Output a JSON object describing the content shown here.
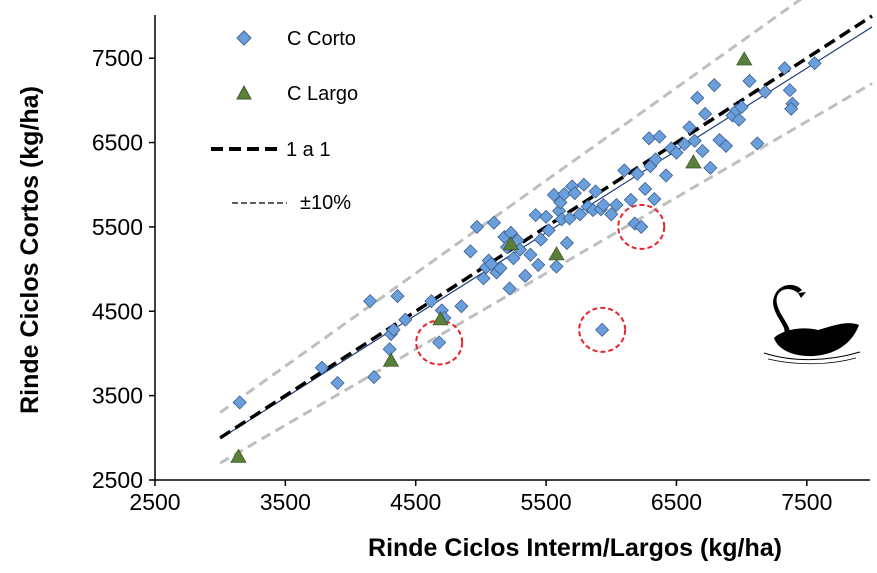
{
  "chart_data": {
    "type": "scatter",
    "title": "",
    "xlabel": "Rinde Ciclos Interm/Largos (kg/ha)",
    "ylabel": "Rinde Ciclos Cortos (kg/ha)",
    "xlim": [
      2500,
      8000
    ],
    "ylim": [
      2500,
      8000
    ],
    "xticks": [
      2500,
      3500,
      4500,
      5500,
      6500,
      7500
    ],
    "yticks": [
      2500,
      3500,
      4500,
      5500,
      6500,
      7500
    ],
    "grid": false,
    "legend_position": "top-left",
    "series": [
      {
        "name": "C Corto",
        "marker": "diamond",
        "color": "#6a9fdc",
        "points": [
          [
            3150,
            3420
          ],
          [
            3780,
            3830
          ],
          [
            3900,
            3650
          ],
          [
            4180,
            3720
          ],
          [
            4150,
            4620
          ],
          [
            4300,
            4050
          ],
          [
            4310,
            4230
          ],
          [
            4330,
            4280
          ],
          [
            4360,
            4680
          ],
          [
            4420,
            4400
          ],
          [
            4620,
            4620
          ],
          [
            4680,
            4130
          ],
          [
            4700,
            4510
          ],
          [
            4720,
            4420
          ],
          [
            4850,
            4560
          ],
          [
            4920,
            5210
          ],
          [
            4970,
            5500
          ],
          [
            5020,
            4890
          ],
          [
            5040,
            5020
          ],
          [
            5060,
            5100
          ],
          [
            5080,
            5060
          ],
          [
            5100,
            5550
          ],
          [
            5120,
            4960
          ],
          [
            5150,
            5010
          ],
          [
            5180,
            5380
          ],
          [
            5200,
            5260
          ],
          [
            5220,
            4770
          ],
          [
            5230,
            5430
          ],
          [
            5250,
            5130
          ],
          [
            5280,
            5340
          ],
          [
            5300,
            5230
          ],
          [
            5340,
            4920
          ],
          [
            5380,
            5170
          ],
          [
            5420,
            5640
          ],
          [
            5440,
            5050
          ],
          [
            5460,
            5350
          ],
          [
            5500,
            5620
          ],
          [
            5520,
            5460
          ],
          [
            5560,
            5880
          ],
          [
            5580,
            5030
          ],
          [
            5600,
            5690
          ],
          [
            5610,
            5790
          ],
          [
            5620,
            5590
          ],
          [
            5640,
            5890
          ],
          [
            5660,
            5310
          ],
          [
            5680,
            5600
          ],
          [
            5700,
            5980
          ],
          [
            5720,
            5900
          ],
          [
            5760,
            5650
          ],
          [
            5790,
            6000
          ],
          [
            5820,
            5740
          ],
          [
            5860,
            5700
          ],
          [
            5880,
            5920
          ],
          [
            5920,
            5710
          ],
          [
            5940,
            5760
          ],
          [
            5930,
            4280
          ],
          [
            6000,
            5650
          ],
          [
            6040,
            5760
          ],
          [
            6100,
            6170
          ],
          [
            6150,
            5820
          ],
          [
            6180,
            5540
          ],
          [
            6200,
            6130
          ],
          [
            6230,
            5500
          ],
          [
            6260,
            5950
          ],
          [
            6290,
            6550
          ],
          [
            6300,
            6220
          ],
          [
            6330,
            5830
          ],
          [
            6340,
            6300
          ],
          [
            6370,
            6570
          ],
          [
            6420,
            6110
          ],
          [
            6460,
            6430
          ],
          [
            6500,
            6380
          ],
          [
            6560,
            6480
          ],
          [
            6600,
            6680
          ],
          [
            6640,
            6520
          ],
          [
            6660,
            7030
          ],
          [
            6700,
            6400
          ],
          [
            6720,
            6840
          ],
          [
            6760,
            6200
          ],
          [
            6790,
            7180
          ],
          [
            6830,
            6530
          ],
          [
            6880,
            6460
          ],
          [
            6930,
            6820
          ],
          [
            6960,
            6880
          ],
          [
            6980,
            6770
          ],
          [
            7000,
            6920
          ],
          [
            7060,
            7230
          ],
          [
            7120,
            6490
          ],
          [
            7180,
            7100
          ],
          [
            7330,
            7380
          ],
          [
            7370,
            7120
          ],
          [
            7390,
            6960
          ],
          [
            7380,
            6900
          ],
          [
            7560,
            7440
          ]
        ]
      },
      {
        "name": "C Largo",
        "marker": "triangle",
        "color": "#5a7f3a",
        "points": [
          [
            3140,
            2780
          ],
          [
            4310,
            3920
          ],
          [
            4690,
            4410
          ],
          [
            5230,
            5300
          ],
          [
            5580,
            5180
          ],
          [
            6630,
            6270
          ],
          [
            7020,
            7490
          ]
        ]
      }
    ],
    "lines": [
      {
        "name": "1 a 1",
        "style": "bold-dashed",
        "color": "#000000",
        "x": [
          3000,
          8000
        ],
        "y": [
          3000,
          8000
        ]
      },
      {
        "name": "±10%",
        "style": "dashed",
        "color": "#bfbfbf",
        "x": [
          3000,
          7500
        ],
        "y": [
          3300,
          8250
        ]
      },
      {
        "name": "",
        "style": "dashed",
        "color": "#bfbfbf",
        "x": [
          3000,
          8000
        ],
        "y": [
          2700,
          7200
        ]
      },
      {
        "name": "",
        "style": "solid",
        "color": "#1f3c7a",
        "x": [
          3000,
          8000
        ],
        "y": [
          2990,
          7870
        ]
      }
    ],
    "highlighted_points": [
      [
        4680,
        4130
      ],
      [
        5930,
        4280
      ],
      [
        6230,
        5500
      ]
    ],
    "highlight_color": "#e8242b",
    "legend": [
      {
        "label": "C Corto",
        "marker": "diamond"
      },
      {
        "label": "C Largo",
        "marker": "triangle"
      },
      {
        "label": "1 a 1",
        "marker": "bold-dashed-line"
      },
      {
        "label": "±10%",
        "marker": "thin-dashed-line"
      }
    ],
    "image_annotation": "swan-icon"
  }
}
